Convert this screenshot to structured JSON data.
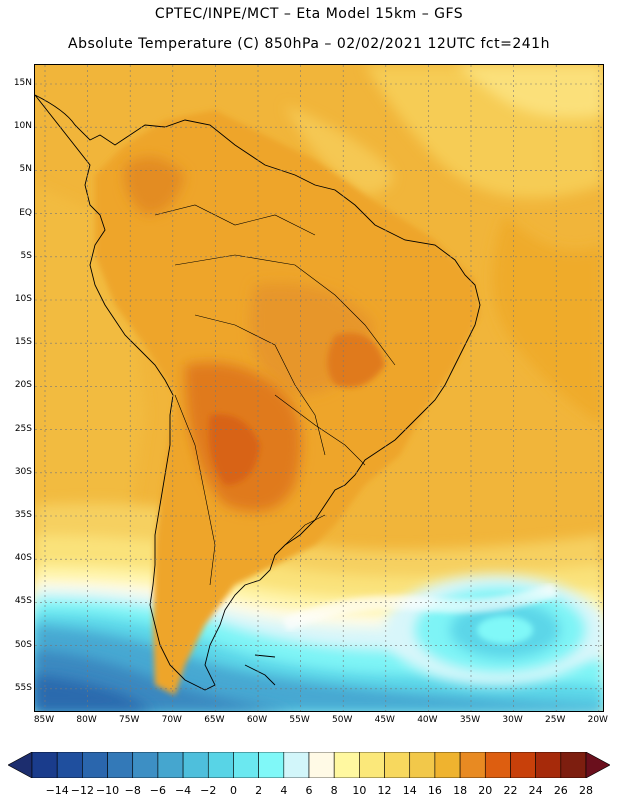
{
  "title_line1": "CPTEC/INPE/MCT –  Eta Model 15km – GFS",
  "title_line2": "Absolute Temperature (C) 850hPa – 02/02/2021 12UTC fct=241h",
  "lat_labels": [
    "15N",
    "10N",
    "5N",
    "EQ",
    "5S",
    "10S",
    "15S",
    "20S",
    "25S",
    "30S",
    "35S",
    "40S",
    "45S",
    "50S",
    "55S"
  ],
  "lon_labels": [
    "85W",
    "80W",
    "75W",
    "70W",
    "65W",
    "60W",
    "55W",
    "50W",
    "45W",
    "40W",
    "35W",
    "30W",
    "25W",
    "20W"
  ],
  "colorbar": {
    "labels": [
      "-14",
      "-12",
      "-10",
      "-8",
      "-6",
      "-4",
      "-2",
      "0",
      "2",
      "4",
      "6",
      "8",
      "10",
      "12",
      "14",
      "16",
      "18",
      "20",
      "22",
      "24",
      "26",
      "28"
    ],
    "colors": [
      "#1a3c8c",
      "#1f4f9e",
      "#2a66ad",
      "#3379b8",
      "#3d8fc4",
      "#45a6cf",
      "#4ebfdc",
      "#58d4e6",
      "#6be8f0",
      "#80f8f8",
      "#d2f6fa",
      "#fffae6",
      "#fff8a0",
      "#fbe87a",
      "#f7d85e",
      "#f2c84a",
      "#efb32f",
      "#e88a22",
      "#dd5e10",
      "#c8400a",
      "#a62a0a",
      "#7d1e0f"
    ],
    "end_low": "#1c2d6e",
    "end_high": "#6a0f1c"
  }
}
